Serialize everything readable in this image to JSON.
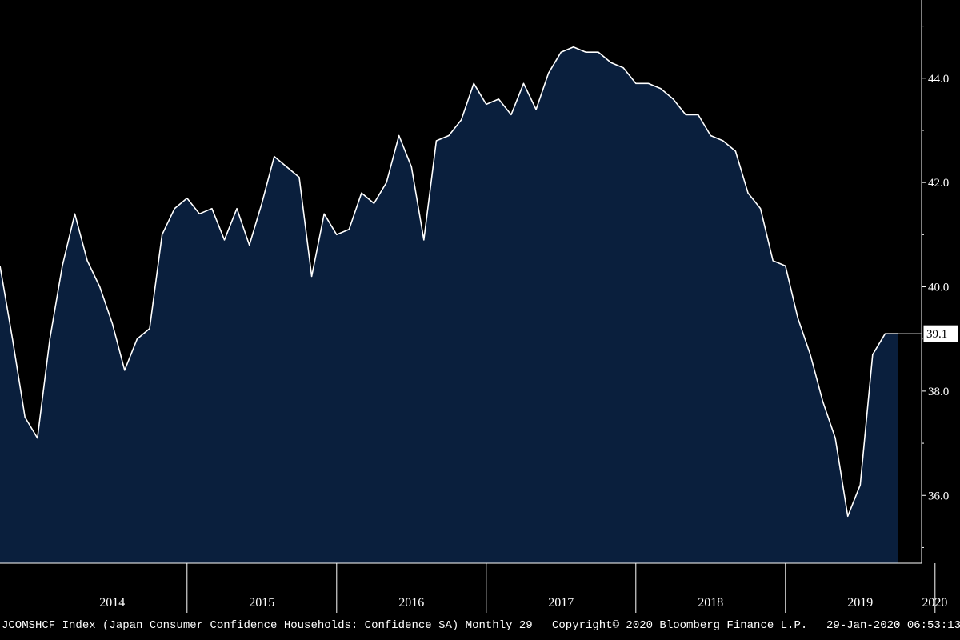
{
  "chart_data": {
    "type": "area",
    "title": "",
    "xlabel": "",
    "ylabel": "",
    "x_start": "2013-10",
    "frequency": "monthly",
    "ylim": [
      34.7,
      45.5
    ],
    "yticks": [
      "36.0",
      "38.0",
      "40.0",
      "42.0",
      "44.0"
    ],
    "year_labels": [
      "2014",
      "2015",
      "2016",
      "2017",
      "2018",
      "2019",
      "2020"
    ],
    "last_value_label": "39.1",
    "grid": false,
    "colors": {
      "fill": "#0a1f3d",
      "line": "#ffffff",
      "background": "#000000",
      "axis": "#ffffff"
    },
    "series": [
      {
        "values": [
          40.4,
          39.0,
          37.5,
          37.1,
          39.0,
          40.4,
          41.4,
          40.5,
          40.0,
          39.3,
          38.4,
          39.0,
          39.2,
          41.0,
          41.5,
          41.7,
          41.4,
          41.5,
          40.9,
          41.5,
          40.8,
          41.6,
          42.5,
          42.3,
          42.1,
          40.2,
          41.4,
          41.0,
          41.1,
          41.8,
          41.6,
          42.0,
          42.9,
          42.3,
          40.9,
          42.8,
          42.9,
          43.2,
          43.9,
          43.5,
          43.6,
          43.3,
          43.9,
          43.4,
          44.1,
          44.5,
          44.6,
          44.5,
          44.5,
          44.3,
          44.2,
          43.9,
          43.9,
          43.8,
          43.6,
          43.3,
          43.3,
          42.9,
          42.8,
          42.6,
          41.8,
          41.5,
          40.5,
          40.4,
          39.4,
          38.7,
          37.8,
          37.1,
          35.6,
          36.2,
          38.7,
          39.1,
          39.1
        ]
      }
    ]
  },
  "footer": {
    "left": "JCOMSHCF Index (Japan Consumer Confidence Households: Confidence SA)  Monthly 29",
    "center": "Copyright© 2020 Bloomberg Finance L.P.",
    "right": "29-Jan-2020 06:53:13"
  }
}
